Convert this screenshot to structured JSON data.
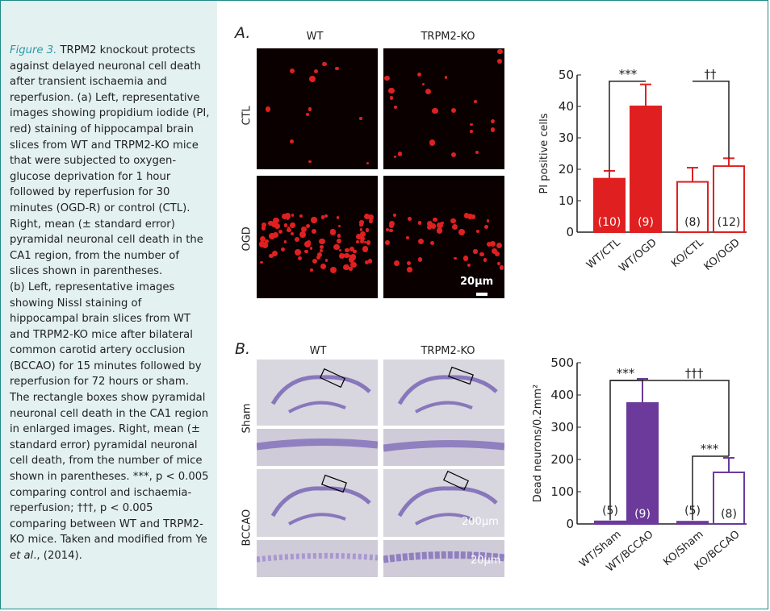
{
  "caption": {
    "fig_label": "Figure 3.",
    "text_a": " TRPM2 knockout protects against delayed neuronal cell death after transient ischaemia and reperfusion. (a) Left, representative images showing propidium iodide (PI, red) staining of hippocampal brain slices from WT and TRPM2-KO mice that were subjected to oxygen-glucose deprivation for 1 hour followed by reperfusion for 30 minutes (OGD-R) or control (CTL). Right, mean (± standard error) pyramidal neuronal cell death in the CA1 region, from the number of slices shown in parentheses.",
    "text_b": "(b) Left, representative images showing Nissl staining of hippocampal brain slices from WT and TRPM2-KO mice after bilateral common carotid artery occlusion (BCCAO) for 15 minutes followed by reperfusion for 72 hours or sham. The rectangle boxes show pyramidal neuronal cell death in the CA1 region in enlarged images. Right, mean (± standard error) pyramidal neuronal cell death, from the number of mice shown in parentheses. ***, p < 0.005 comparing control and ischaemia-reperfusion; †††, p < 0.005 comparing between WT and TRPM2-KO mice. Taken and modified from Ye ",
    "et_al": "et al",
    "text_end": "., (2014)."
  },
  "panel_a": {
    "letter": "A.",
    "col_wt": "WT",
    "col_ko": "TRPM2-KO",
    "row_ctl": "CTL",
    "row_ogd": "OGD",
    "scale": "20µm"
  },
  "panel_b": {
    "letter": "B.",
    "col_wt": "WT",
    "col_ko": "TRPM2-KO",
    "row_sham": "Sham",
    "row_bccao": "BCCAO",
    "scale_large": "200µm",
    "scale_small": "20µm"
  },
  "chart_data": [
    {
      "type": "bar",
      "ylabel": "PI positive cells",
      "ylim": [
        0,
        50
      ],
      "yticks": [
        0,
        10,
        20,
        30,
        40,
        50
      ],
      "categories": [
        "WT/CTL",
        "WT/OGD",
        "KO/CTL",
        "KO/OGD"
      ],
      "values": [
        17,
        40,
        16,
        21
      ],
      "errors": [
        2.5,
        7,
        4.5,
        2.5
      ],
      "n": [
        "(10)",
        "(9)",
        "(8)",
        "(12)"
      ],
      "filled": [
        true,
        true,
        false,
        false
      ],
      "color": "#e02020",
      "annotations": [
        "***",
        "††"
      ]
    },
    {
      "type": "bar",
      "ylabel": "Dead neurons/0.2mm²",
      "ylim": [
        0,
        500
      ],
      "yticks": [
        0,
        100,
        200,
        300,
        400,
        500
      ],
      "categories": [
        "WT/Sham",
        "WT/BCCAO",
        "KO/Sham",
        "KO/BCCAO"
      ],
      "values": [
        8,
        375,
        7,
        160
      ],
      "errors": [
        0,
        75,
        0,
        45
      ],
      "n": [
        "(5)",
        "(9)",
        "(5)",
        "(8)"
      ],
      "filled": [
        true,
        true,
        true,
        false
      ],
      "color": "#6b3a9a",
      "annotations": [
        "***",
        "†††",
        "***"
      ]
    }
  ]
}
